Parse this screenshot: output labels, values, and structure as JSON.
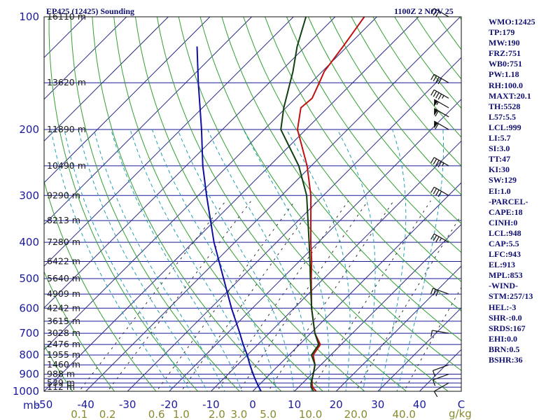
{
  "header": {
    "station": "EP425 (12425) Sounding",
    "datetime": "1100Z  2 NOV 25"
  },
  "indices": [
    "WMO:12425",
    "TP:179",
    "MW:190",
    "FRZ:751",
    "WB0:751",
    "PW:1.18",
    "RH:100.0",
    "MAXT:20.1",
    "TH:5528",
    "L57:5.5",
    "LCL:999",
    "LI:5.7",
    "SI:3.0",
    "TT:47",
    "KI:30",
    "SW:129",
    "EI:1.0",
    "-PARCEL-",
    "CAPE:18",
    "CINH:0",
    "LCL:948",
    "CAP:5.5",
    "LFC:943",
    "EL:913",
    "MPL:853",
    "-WIND-",
    "STM:257/13",
    "HEL:-3",
    "SHR-:0.0",
    "SRDS:167",
    "EHI:0.0",
    "BRN:0.5",
    "BSHR:36"
  ],
  "chart_data": {
    "type": "skew-t",
    "title": "EP425 (12425) Sounding",
    "pressure_unit": "mb",
    "mixing_ratio_unit": "g/kg",
    "pressure_range": [
      1000,
      100
    ],
    "temperature_range": [
      -50,
      50
    ],
    "pressure_axis_ticks": [
      {
        "p": 100,
        "label": "100"
      },
      {
        "p": 200,
        "label": "200"
      },
      {
        "p": 300,
        "label": "300"
      },
      {
        "p": 400,
        "label": "400"
      },
      {
        "p": 500,
        "label": "500"
      },
      {
        "p": 600,
        "label": "600"
      },
      {
        "p": 700,
        "label": "700"
      },
      {
        "p": 800,
        "label": "800"
      },
      {
        "p": 900,
        "label": "900"
      },
      {
        "p": 1000,
        "label": "1000"
      }
    ],
    "isobar_levels": [
      100,
      150,
      200,
      250,
      300,
      350,
      400,
      450,
      500,
      550,
      600,
      650,
      700,
      750,
      800,
      850,
      900,
      925,
      950,
      975,
      1000
    ],
    "height_labels": [
      {
        "p": 100,
        "label": "16110 m"
      },
      {
        "p": 150,
        "label": "13620 m"
      },
      {
        "p": 200,
        "label": "11890 m"
      },
      {
        "p": 250,
        "label": "10490 m"
      },
      {
        "p": 300,
        "label": "9290 m"
      },
      {
        "p": 350,
        "label": "8213 m"
      },
      {
        "p": 400,
        "label": "7280 m"
      },
      {
        "p": 450,
        "label": "6422 m"
      },
      {
        "p": 500,
        "label": "5640 m"
      },
      {
        "p": 550,
        "label": "4909 m"
      },
      {
        "p": 600,
        "label": "4242 m"
      },
      {
        "p": 650,
        "label": "3615 m"
      },
      {
        "p": 700,
        "label": "3028 m"
      },
      {
        "p": 750,
        "label": "2476 m"
      },
      {
        "p": 800,
        "label": "1955 m"
      },
      {
        "p": 850,
        "label": "1460 m"
      },
      {
        "p": 900,
        "label": "988 m"
      },
      {
        "p": 950,
        "label": "539 m"
      },
      {
        "p": 975,
        "label": "112 m"
      }
    ],
    "temperature_ticks": [
      {
        "t": -50,
        "label": "-50"
      },
      {
        "t": -40,
        "label": "-40"
      },
      {
        "t": -30,
        "label": "-30"
      },
      {
        "t": -20,
        "label": "-20"
      },
      {
        "t": -10,
        "label": "-10"
      },
      {
        "t": 0,
        "label": "0"
      },
      {
        "t": 10,
        "label": "10"
      },
      {
        "t": 20,
        "label": "20"
      },
      {
        "t": 30,
        "label": "30"
      },
      {
        "t": 40,
        "label": "40"
      },
      {
        "t": 50,
        "label": "C"
      }
    ],
    "mixing_ratio_ticks": [
      {
        "w": 0.1,
        "label": "0.1"
      },
      {
        "w": 0.2,
        "label": "0.2"
      },
      {
        "w": 0.6,
        "label": "0.6"
      },
      {
        "w": 1.0,
        "label": "1.0"
      },
      {
        "w": 2.0,
        "label": "2.0"
      },
      {
        "w": 3.0,
        "label": "3.0"
      },
      {
        "w": 5.0,
        "label": "5.0"
      },
      {
        "w": 10.0,
        "label": "10.0"
      },
      {
        "w": 20.0,
        "label": "20.0"
      },
      {
        "w": 40.0,
        "label": "40.0"
      }
    ],
    "series": [
      {
        "name": "temperature",
        "color": "#c01010",
        "points": [
          {
            "p": 1000,
            "t": 15.2
          },
          {
            "p": 975,
            "t": 13.4
          },
          {
            "p": 950,
            "t": 12.2
          },
          {
            "p": 925,
            "t": 11.2
          },
          {
            "p": 900,
            "t": 10.4
          },
          {
            "p": 850,
            "t": 8.6
          },
          {
            "p": 800,
            "t": 5.8
          },
          {
            "p": 750,
            "t": 5.0
          },
          {
            "p": 700,
            "t": 1.0
          },
          {
            "p": 600,
            "t": -5.8
          },
          {
            "p": 500,
            "t": -13.0
          },
          {
            "p": 450,
            "t": -17.0
          },
          {
            "p": 400,
            "t": -21.8
          },
          {
            "p": 300,
            "t": -33.0
          },
          {
            "p": 250,
            "t": -41.0
          },
          {
            "p": 200,
            "t": -52.0
          },
          {
            "p": 175,
            "t": -56.4
          },
          {
            "p": 165,
            "t": -56.0
          },
          {
            "p": 150,
            "t": -58.0
          },
          {
            "p": 140,
            "t": -59.5
          },
          {
            "p": 120,
            "t": -61.0
          },
          {
            "p": 100,
            "t": -63.0
          }
        ]
      },
      {
        "name": "dewpoint",
        "color": "#104010",
        "points": [
          {
            "p": 1000,
            "t": 14.6
          },
          {
            "p": 975,
            "t": 13.0
          },
          {
            "p": 950,
            "t": 12.0
          },
          {
            "p": 925,
            "t": 11.2
          },
          {
            "p": 900,
            "t": 10.4
          },
          {
            "p": 850,
            "t": 8.6
          },
          {
            "p": 800,
            "t": 5.4
          },
          {
            "p": 750,
            "t": 4.6
          },
          {
            "p": 700,
            "t": 1.0
          },
          {
            "p": 600,
            "t": -5.8
          },
          {
            "p": 500,
            "t": -13.2
          },
          {
            "p": 450,
            "t": -17.4
          },
          {
            "p": 400,
            "t": -22.2
          },
          {
            "p": 300,
            "t": -34.0
          },
          {
            "p": 250,
            "t": -43.0
          },
          {
            "p": 200,
            "t": -56.0
          },
          {
            "p": 175,
            "t": -60.5
          },
          {
            "p": 150,
            "t": -65.0
          },
          {
            "p": 140,
            "t": -67.0
          },
          {
            "p": 120,
            "t": -72.0
          },
          {
            "p": 100,
            "t": -77.0
          }
        ]
      },
      {
        "name": "parcel",
        "color": "#1010a0",
        "points": [
          {
            "p": 1000,
            "t": 2.0
          },
          {
            "p": 975,
            "t": 0.5
          },
          {
            "p": 950,
            "t": -1.0
          },
          {
            "p": 925,
            "t": -2.5
          },
          {
            "p": 900,
            "t": -4.0
          },
          {
            "p": 850,
            "t": -7.0
          },
          {
            "p": 800,
            "t": -10.0
          },
          {
            "p": 750,
            "t": -13.5
          },
          {
            "p": 700,
            "t": -17.0
          },
          {
            "p": 600,
            "t": -25.0
          },
          {
            "p": 500,
            "t": -34.0
          },
          {
            "p": 400,
            "t": -45.0
          },
          {
            "p": 300,
            "t": -58.0
          },
          {
            "p": 250,
            "t": -66.0
          },
          {
            "p": 200,
            "t": -75.0
          },
          {
            "p": 150,
            "t": -87.0
          },
          {
            "p": 120,
            "t": -96.0
          }
        ]
      }
    ],
    "wind_barbs": [
      {
        "p": 100,
        "dir": 300,
        "speed": 30
      },
      {
        "p": 150,
        "dir": 300,
        "speed": 40
      },
      {
        "p": 165,
        "dir": 300,
        "speed": 45
      },
      {
        "p": 175,
        "dir": 300,
        "speed": 55
      },
      {
        "p": 185,
        "dir": 300,
        "speed": 60
      },
      {
        "p": 200,
        "dir": 300,
        "speed": 60
      },
      {
        "p": 250,
        "dir": 300,
        "speed": 45
      },
      {
        "p": 300,
        "dir": 300,
        "speed": 40
      },
      {
        "p": 400,
        "dir": 300,
        "speed": 35
      },
      {
        "p": 550,
        "dir": 290,
        "speed": 30
      },
      {
        "p": 700,
        "dir": 280,
        "speed": 10
      },
      {
        "p": 850,
        "dir": 250,
        "speed": 10
      },
      {
        "p": 900,
        "dir": 250,
        "speed": 10
      },
      {
        "p": 950,
        "dir": 240,
        "speed": 10
      }
    ]
  }
}
